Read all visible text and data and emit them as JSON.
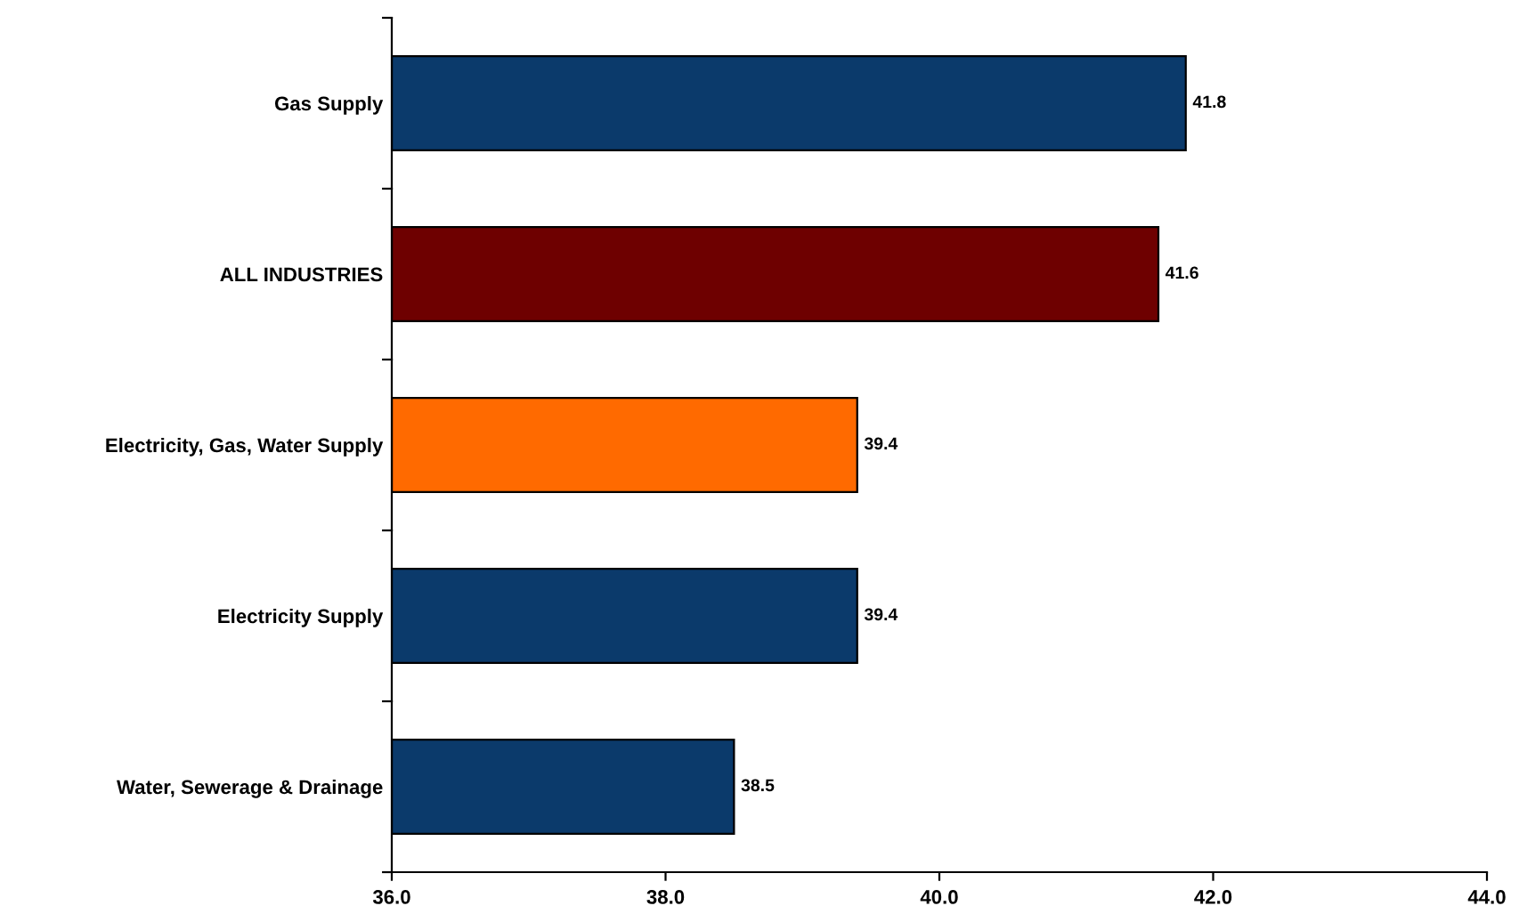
{
  "chart_data": {
    "type": "bar",
    "orientation": "horizontal",
    "categories": [
      "Gas Supply",
      "ALL INDUSTRIES",
      "Electricity, Gas, Water Supply",
      "Electricity Supply",
      "Water, Sewerage & Drainage"
    ],
    "values": [
      41.8,
      41.6,
      39.4,
      39.4,
      38.5
    ],
    "colors": [
      "#0b3a6b",
      "#6e0000",
      "#ff6a00",
      "#0b3a6b",
      "#0b3a6b"
    ],
    "xlim": [
      36,
      44
    ],
    "xticks": [
      {
        "value": 36,
        "label": "36.0"
      },
      {
        "value": 38,
        "label": "38.0"
      },
      {
        "value": 40,
        "label": "40.0"
      },
      {
        "value": 42,
        "label": "42.0"
      },
      {
        "value": 44,
        "label": "44.0"
      }
    ],
    "data_labels": true,
    "grid": false,
    "legend": false
  }
}
